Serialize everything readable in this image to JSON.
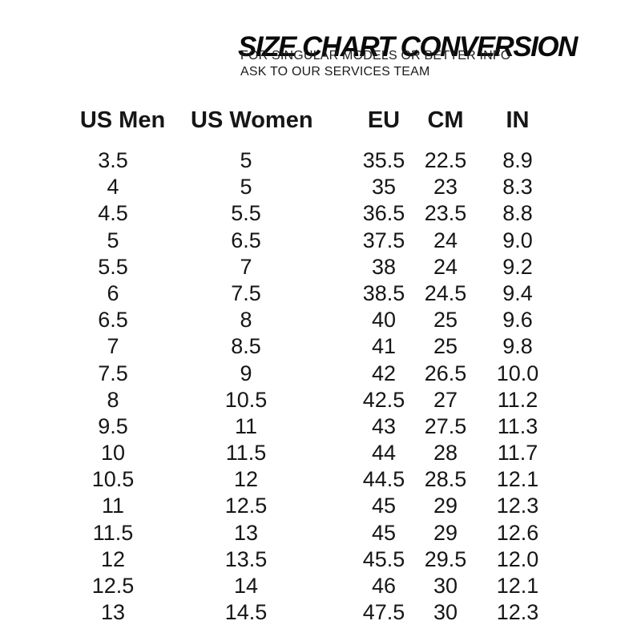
{
  "page": {
    "title": "SIZE CHART CONVERSION",
    "subtitle_line1": "FOR SINGULAR MODELS OR BETTER INFO",
    "subtitle_line2": "ASK TO OUR SERVICES TEAM"
  },
  "table": {
    "headers": [
      "US Men",
      "US Women",
      "EU",
      "CM",
      "IN"
    ],
    "rows": [
      [
        "3.5",
        "5",
        "35.5",
        "22.5",
        "8.9"
      ],
      [
        "4",
        "5",
        "35",
        "23",
        "8.3"
      ],
      [
        "4.5",
        "5.5",
        "36.5",
        "23.5",
        "8.8"
      ],
      [
        "5",
        "6.5",
        "37.5",
        "24",
        "9.0"
      ],
      [
        "5.5",
        "7",
        "38",
        "24",
        "9.2"
      ],
      [
        "6",
        "7.5",
        "38.5",
        "24.5",
        "9.4"
      ],
      [
        "6.5",
        "8",
        "40",
        "25",
        "9.6"
      ],
      [
        "7",
        "8.5",
        "41",
        "25",
        "9.8"
      ],
      [
        "7.5",
        "9",
        "42",
        "26.5",
        "10.0"
      ],
      [
        "8",
        "10.5",
        "42.5",
        "27",
        "11.2"
      ],
      [
        "9.5",
        "11",
        "43",
        "27.5",
        "11.3"
      ],
      [
        "10",
        "11.5",
        "44",
        "28",
        "11.7"
      ],
      [
        "10.5",
        "12",
        "44.5",
        "28.5",
        "12.1"
      ],
      [
        "11",
        "12.5",
        "45",
        "29",
        "12.3"
      ],
      [
        "11.5",
        "13",
        "45",
        "29",
        "12.6"
      ],
      [
        "12",
        "13.5",
        "45.5",
        "29.5",
        "12.0"
      ],
      [
        "12.5",
        "14",
        "46",
        "30",
        "12.1"
      ],
      [
        "13",
        "14.5",
        "47.5",
        "30",
        "12.3"
      ]
    ]
  },
  "colors": {
    "background": "#ffffff",
    "text": "#161616"
  }
}
